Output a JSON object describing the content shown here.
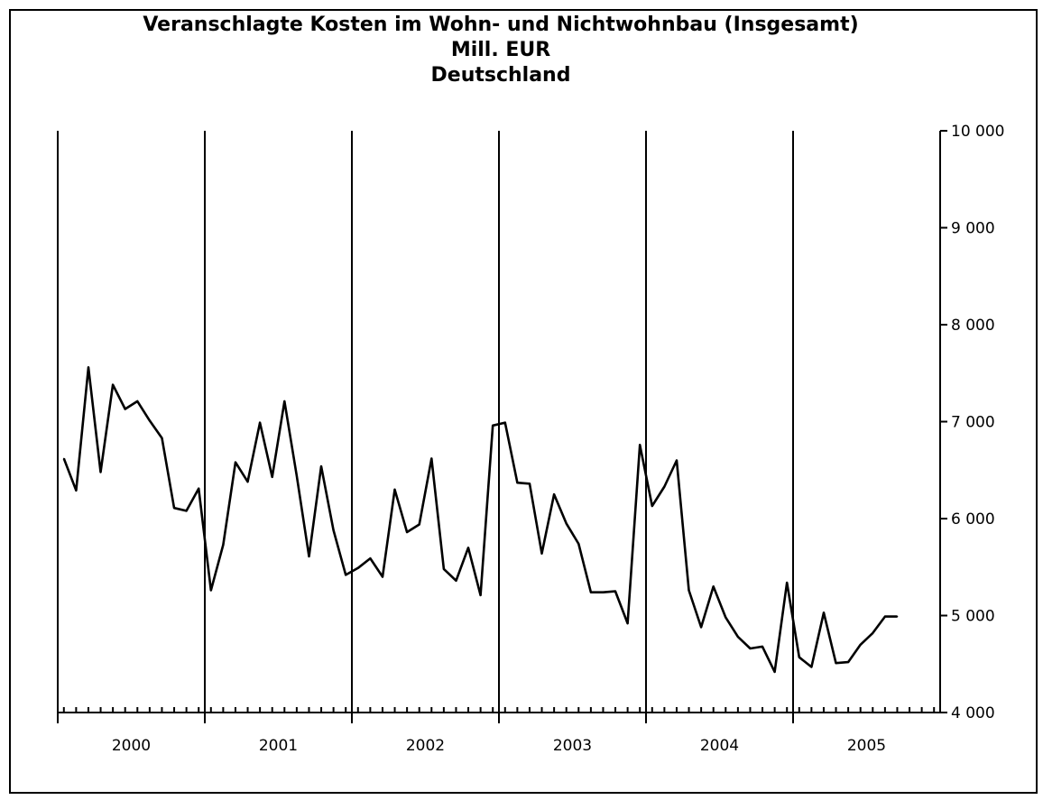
{
  "chart_data": {
    "type": "line",
    "title": "Veranschlagte Kosten im Wohn- und Nichtwohnbau (Insgesamt)",
    "subtitle": "Mill. EUR",
    "subtitle2": "Deutschland",
    "x_ticks": [
      "2000",
      "2001",
      "2002",
      "2003",
      "2004",
      "2005"
    ],
    "y_ticks": [
      "4 000",
      "5 000",
      "6 000",
      "7 000",
      "8 000",
      "9 000",
      "10 000"
    ],
    "y_axis_position": "right",
    "ylim": [
      4000,
      10000
    ],
    "year_separators": true,
    "series": [
      {
        "values": [
          6620,
          6290,
          7560,
          6480,
          7380,
          7130,
          7210,
          7010,
          6830,
          6110,
          6080,
          6310,
          5260,
          5730,
          6580,
          6380,
          6990,
          6430,
          7210,
          6440,
          5610,
          6540,
          5880,
          5420,
          5490,
          5590,
          5400,
          6300,
          5860,
          5940,
          6620,
          5480,
          5360,
          5700,
          5210,
          6960,
          6990,
          6370,
          6360,
          5640,
          6250,
          5950,
          5740,
          5240,
          5240,
          5250,
          4920,
          6760,
          6130,
          6330,
          6600,
          5260,
          4880,
          5300,
          4980,
          4780,
          4660,
          4680,
          4420,
          5340,
          4570,
          4470,
          5030,
          4510,
          4520,
          4700,
          4820,
          4990,
          4990
        ]
      }
    ]
  }
}
